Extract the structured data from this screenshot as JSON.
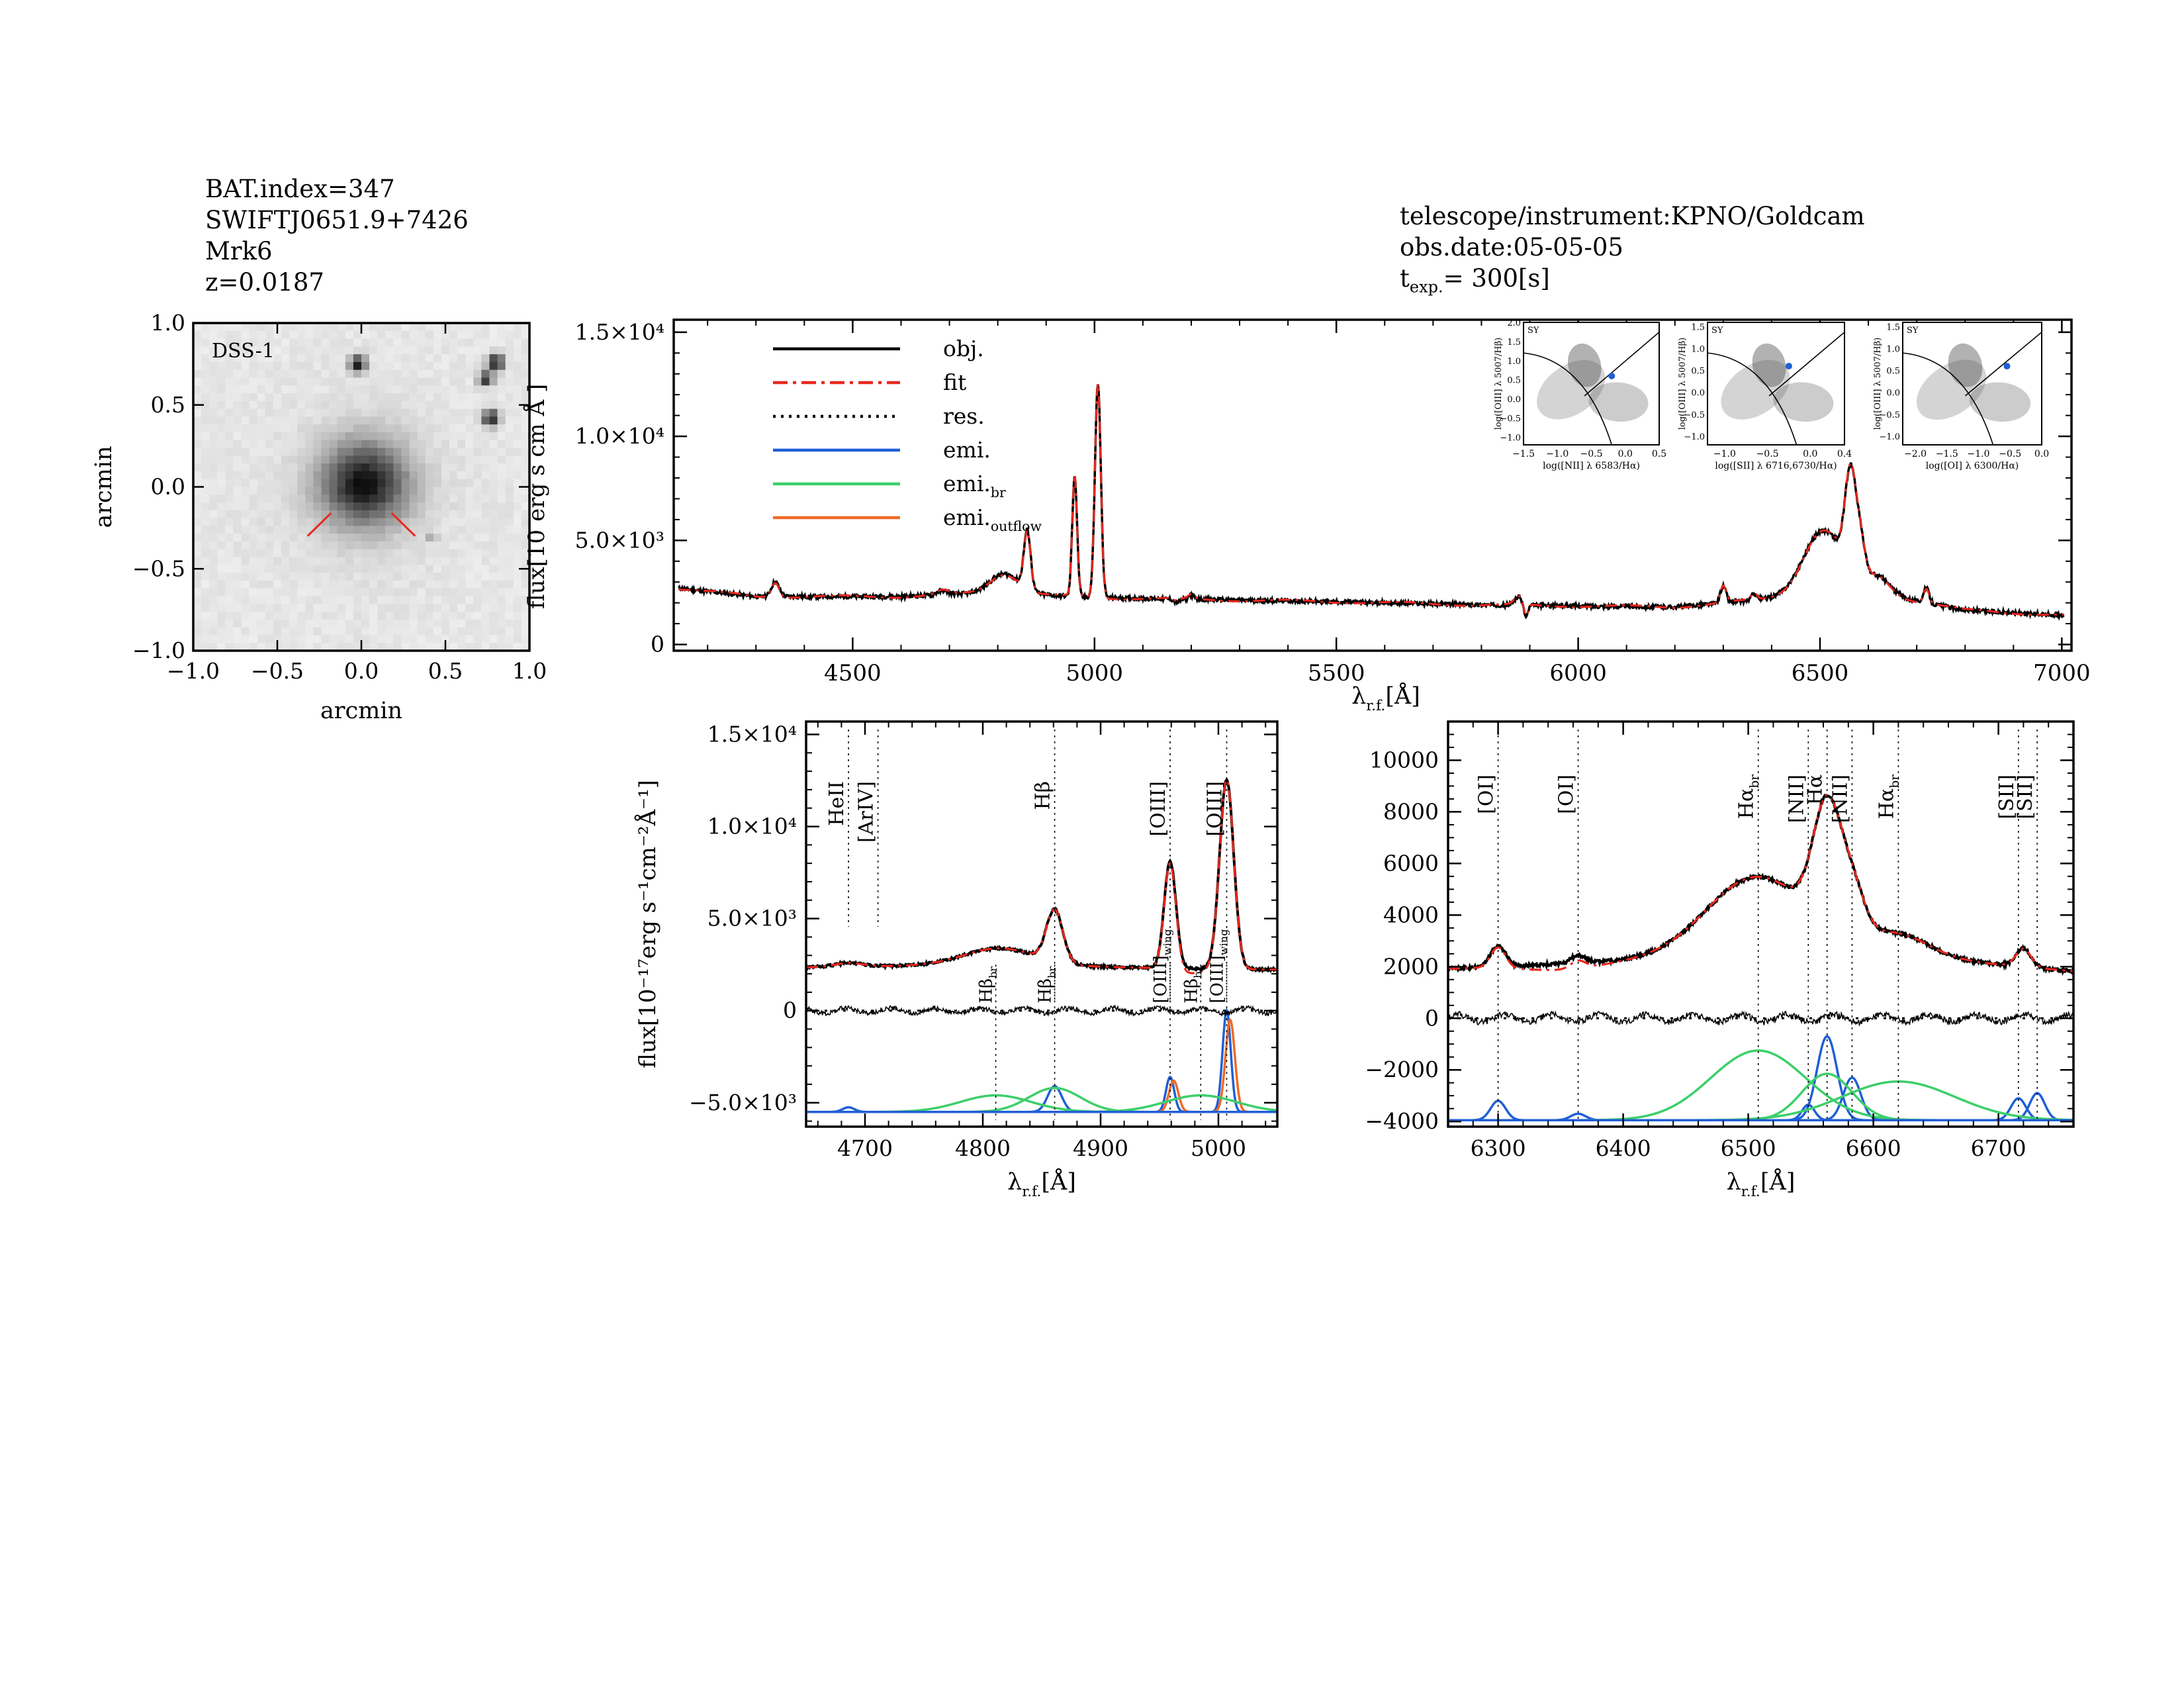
{
  "header_left": {
    "line1": "BAT.index=347",
    "line2": "SWIFTJ0651.9+7426",
    "line3": "Mrk6",
    "line4": "z=0.0187"
  },
  "header_right": {
    "line1": "telescope/instrument:KPNO/Goldcam",
    "line2": "obs.date:05-05-05",
    "texp_prefix": "t",
    "texp_sub": "exp.",
    "texp_value": "=  300[s]"
  },
  "colors": {
    "obj": "#000000",
    "fit": "#e8281e",
    "res": "#000000",
    "emi": "#1f5fd6",
    "emi_br": "#3ccf6a",
    "emi_outflow": "#f06a25",
    "arIV_label": "#e8281e",
    "axis": "#000000"
  },
  "chart_data": [
    {
      "id": "dss_image",
      "type": "image",
      "label": "DSS-1",
      "xlabel": "arcmin",
      "ylabel": "arcmin",
      "xlim": [
        -1.0,
        1.0
      ],
      "ylim": [
        -1.0,
        1.0
      ],
      "xticks": [
        "−1.0",
        "−0.5",
        "0.0",
        "0.5",
        "1.0"
      ],
      "yticks": [
        "−1.0",
        "−0.5",
        "0.0",
        "0.5",
        "1.0"
      ],
      "sources": [
        {
          "x": 0.02,
          "y": 0.02,
          "size": 0.18,
          "strength": 0.75
        },
        {
          "x": -0.02,
          "y": 0.75,
          "size": 0.035,
          "strength": 0.8
        },
        {
          "x": 0.8,
          "y": 0.76,
          "size": 0.035,
          "strength": 0.85
        },
        {
          "x": 0.74,
          "y": 0.66,
          "size": 0.03,
          "strength": 0.75
        },
        {
          "x": 0.77,
          "y": 0.42,
          "size": 0.035,
          "strength": 0.8
        },
        {
          "x": 0.42,
          "y": -0.3,
          "size": 0.02,
          "strength": 0.3
        }
      ]
    },
    {
      "id": "full_spectrum",
      "type": "line",
      "xlabel_main": "λ",
      "xlabel_sub": "r.f.",
      "xlabel_unit": "[Å]",
      "ylabel_main": "flux[10",
      "ylabel_tail": "erg s  cm  Å  ]",
      "xlim": [
        4130,
        7020
      ],
      "ylim": [
        -300,
        15600
      ],
      "xticks": [
        4500,
        5000,
        5500,
        6000,
        6500,
        7000
      ],
      "yticks": [
        {
          "v": 0,
          "label": "0"
        },
        {
          "v": 5000,
          "label": "5.0×10³"
        },
        {
          "v": 10000,
          "label": "1.0×10⁴"
        },
        {
          "v": 15000,
          "label": "1.5×10⁴"
        }
      ],
      "legend": [
        {
          "key": "obj",
          "label": "obj."
        },
        {
          "key": "fit",
          "label": "fit"
        },
        {
          "key": "res",
          "label": "res."
        },
        {
          "key": "emi",
          "label": "emi."
        },
        {
          "key": "emi_br",
          "label": "emi.",
          "sub": "br"
        },
        {
          "key": "emi_outflow",
          "label": "emi.",
          "sub": "outflow"
        }
      ],
      "continuum": [
        [
          4140,
          2700
        ],
        [
          4300,
          2300
        ],
        [
          4600,
          2300
        ],
        [
          4800,
          2500
        ],
        [
          5000,
          2250
        ],
        [
          5500,
          2050
        ],
        [
          5800,
          1900
        ],
        [
          6200,
          1800
        ],
        [
          6450,
          2300
        ],
        [
          6550,
          2800
        ],
        [
          6650,
          2300
        ],
        [
          6800,
          1650
        ],
        [
          7000,
          1400
        ]
      ],
      "lines": [
        {
          "c": 4340,
          "s": 8,
          "a": 700
        },
        {
          "c": 4686,
          "s": 12,
          "a": 200
        },
        {
          "c": 4815,
          "s": 30,
          "a": 900
        },
        {
          "c": 4861,
          "s": 7,
          "a": 2800
        },
        {
          "c": 4959,
          "s": 5,
          "a": 5800
        },
        {
          "c": 5007,
          "s": 6,
          "a": 10300
        },
        {
          "c": 5200,
          "s": 6,
          "a": 200
        },
        {
          "c": 5876,
          "s": 8,
          "a": 400
        },
        {
          "c": 6300,
          "s": 6,
          "a": 800
        },
        {
          "c": 6364,
          "s": 6,
          "a": 300
        },
        {
          "c": 6505,
          "s": 40,
          "a": 2900
        },
        {
          "c": 6563,
          "s": 11,
          "a": 4600
        },
        {
          "c": 6583,
          "s": 10,
          "a": 1800
        },
        {
          "c": 6620,
          "s": 25,
          "a": 800
        },
        {
          "c": 6720,
          "s": 6,
          "a": 700
        }
      ],
      "absorption": [
        {
          "c": 5892,
          "s": 4,
          "a": -600
        },
        {
          "c": 5170,
          "s": 6,
          "a": -150
        }
      ],
      "bpt_insets": [
        {
          "xlabel": "log([NII] λ 6583/Hα)",
          "ylabel": "log([OIII] λ 5007/Hβ)",
          "tag": "SY",
          "xlim": [
            -1.5,
            0.5
          ],
          "xticks": [
            "−1.5",
            "−1.0",
            "−0.5",
            "0.0",
            "0.5"
          ],
          "ylim": [
            -1.2,
            2.0
          ],
          "yticks": [
            "−1.0",
            "−0.5",
            "0.0",
            "0.5",
            "1.0",
            "1.5",
            "2.0"
          ],
          "point": [
            -0.2,
            0.6
          ]
        },
        {
          "xlabel": "log([SII] λ 6716,6730/Hα)",
          "ylabel": "log([OIII] λ 5007/Hβ)",
          "tag": "SY",
          "xlim": [
            -1.2,
            0.4
          ],
          "xticks": [
            "−1.0",
            "−0.5",
            "0.0",
            "0.4"
          ],
          "ylim": [
            -1.2,
            1.6
          ],
          "yticks": [
            "−1.0",
            "−0.5",
            "0.0",
            "0.5",
            "1.0",
            "1.5"
          ],
          "point": [
            -0.25,
            0.6
          ]
        },
        {
          "xlabel": "log([OI] λ 6300/Hα)",
          "ylabel": "log([OIII] λ 5007/Hβ)",
          "tag": "SY",
          "xlim": [
            -2.2,
            0.0
          ],
          "xticks": [
            "−2.0",
            "−1.5",
            "−1.0",
            "−0.5",
            "0.0"
          ],
          "ylim": [
            -1.2,
            1.6
          ],
          "yticks": [
            "−1.0",
            "−0.5",
            "0.0",
            "0.5",
            "1.0",
            "1.5"
          ],
          "point": [
            -0.55,
            0.6
          ]
        }
      ]
    },
    {
      "id": "hbeta_oiii_zoom",
      "type": "line",
      "xlabel_main": "λ",
      "xlabel_sub": "r.f.",
      "xlabel_unit": "[Å]",
      "ylabel": "flux[10⁻¹⁷erg s⁻¹cm⁻²Å⁻¹]",
      "xlim": [
        4650,
        5050
      ],
      "ylim": [
        -6300,
        15700
      ],
      "xticks": [
        4700,
        4800,
        4900,
        5000
      ],
      "yticks": [
        {
          "v": -5000,
          "label": "−5.0×10³"
        },
        {
          "v": 0,
          "label": "0"
        },
        {
          "v": 5000,
          "label": "5.0×10³"
        },
        {
          "v": 10000,
          "label": "1.0×10⁴"
        },
        {
          "v": 15000,
          "label": "1.5×10⁴"
        }
      ],
      "markers_top": [
        {
          "x": 4686,
          "label": "HeII",
          "color": "#000000"
        },
        {
          "x": 4711,
          "label": "[ArIV]",
          "color": "#e8281e"
        },
        {
          "x": 4861,
          "label": "Hβ",
          "color": "#000000"
        },
        {
          "x": 4959,
          "label": "[OIII]",
          "color": "#000000"
        },
        {
          "x": 5007,
          "label": "[OIII]",
          "color": "#000000"
        }
      ],
      "markers_low": [
        {
          "x": 4811,
          "label": "Hβ",
          "sub": "br"
        },
        {
          "x": 4861,
          "label": "Hβ",
          "sub": "br"
        },
        {
          "x": 4959,
          "label": "[OIII]",
          "sub": "wing"
        },
        {
          "x": 4985,
          "label": "Hβ",
          "sub": "br"
        },
        {
          "x": 5007,
          "label": "[OIII]",
          "sub": "wing"
        }
      ],
      "baseline_offset": -5500,
      "components": [
        {
          "type": "emi",
          "c": 4686,
          "s": 5,
          "a": 250
        },
        {
          "type": "emi",
          "c": 4861,
          "s": 6,
          "a": 1400
        },
        {
          "type": "emi",
          "c": 4959,
          "s": 3.5,
          "a": 1900
        },
        {
          "type": "emi",
          "c": 5007,
          "s": 3.5,
          "a": 5500
        },
        {
          "type": "emi_outflow",
          "c": 4962,
          "s": 4,
          "a": 1700
        },
        {
          "type": "emi_outflow",
          "c": 5010,
          "s": 4,
          "a": 5000
        },
        {
          "type": "emi_br",
          "c": 4811,
          "s": 30,
          "a": 900
        },
        {
          "type": "emi_br",
          "c": 4861,
          "s": 22,
          "a": 1300
        },
        {
          "type": "emi_br",
          "c": 4985,
          "s": 30,
          "a": 900
        }
      ]
    },
    {
      "id": "halpha_zoom",
      "type": "line",
      "xlabel_main": "λ",
      "xlabel_sub": "r.f.",
      "xlabel_unit": "[Å]",
      "xlim": [
        6260,
        6760
      ],
      "ylim": [
        -4200,
        11500
      ],
      "xticks": [
        6300,
        6400,
        6500,
        6600,
        6700
      ],
      "yticks": [
        {
          "v": -4000,
          "label": "−4000"
        },
        {
          "v": -2000,
          "label": "−2000"
        },
        {
          "v": 0,
          "label": "0"
        },
        {
          "v": 2000,
          "label": "2000"
        },
        {
          "v": 4000,
          "label": "4000"
        },
        {
          "v": 6000,
          "label": "6000"
        },
        {
          "v": 8000,
          "label": "8000"
        },
        {
          "v": 10000,
          "label": "10000"
        }
      ],
      "markers_top": [
        {
          "x": 6300,
          "label": "[OI]"
        },
        {
          "x": 6364,
          "label": "[OI]"
        },
        {
          "x": 6508,
          "label": "Hα",
          "sub": "br"
        },
        {
          "x": 6548,
          "label": "[NII]"
        },
        {
          "x": 6563,
          "label": "Hα"
        },
        {
          "x": 6583,
          "label": "[NII]"
        },
        {
          "x": 6620,
          "label": "Hα",
          "sub": "br"
        },
        {
          "x": 6716,
          "label": "[SII]"
        },
        {
          "x": 6731,
          "label": "[SII]"
        }
      ],
      "baseline_offset": -3950,
      "components": [
        {
          "type": "emi",
          "c": 6300,
          "s": 6,
          "a": 750
        },
        {
          "type": "emi",
          "c": 6364,
          "s": 6,
          "a": 250
        },
        {
          "type": "emi",
          "c": 6548,
          "s": 5,
          "a": 600
        },
        {
          "type": "emi",
          "c": 6563,
          "s": 8,
          "a": 3250
        },
        {
          "type": "emi",
          "c": 6583,
          "s": 7,
          "a": 1650
        },
        {
          "type": "emi",
          "c": 6716,
          "s": 6,
          "a": 850
        },
        {
          "type": "emi",
          "c": 6731,
          "s": 6,
          "a": 1050
        },
        {
          "type": "emi_br",
          "c": 6508,
          "s": 38,
          "a": 2700
        },
        {
          "type": "emi_br",
          "c": 6563,
          "s": 20,
          "a": 1800
        },
        {
          "type": "emi_br",
          "c": 6620,
          "s": 45,
          "a": 1500
        }
      ]
    }
  ]
}
